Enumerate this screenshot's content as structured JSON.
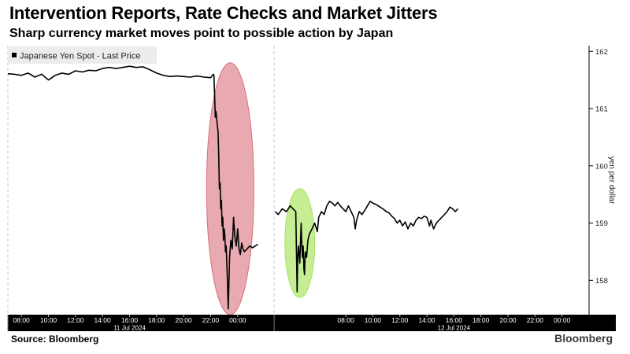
{
  "header": {
    "title": "Intervention Reports, Rate Checks and Market Jitters",
    "subtitle": "Sharp currency market moves point to possible action by Japan"
  },
  "footer": {
    "source": "Source: Bloomberg",
    "brand": "Bloomberg"
  },
  "chart_data": {
    "type": "line",
    "legend": {
      "label": "Japanese Yen Spot - Last Price",
      "placement": "top-left"
    },
    "ylabel": "yen per dollar",
    "y_axis_position": "right",
    "ylim": [
      157.4,
      162.1
    ],
    "yticks": [
      158,
      159,
      160,
      161,
      162
    ],
    "x_hours_range": [
      7,
      50
    ],
    "xticks": [
      {
        "hour": 8,
        "label": "08:00"
      },
      {
        "hour": 10,
        "label": "10:00"
      },
      {
        "hour": 12,
        "label": "12:00"
      },
      {
        "hour": 14,
        "label": "14:00"
      },
      {
        "hour": 16,
        "label": "16:00"
      },
      {
        "hour": 18,
        "label": "18:00"
      },
      {
        "hour": 20,
        "label": "20:00"
      },
      {
        "hour": 22,
        "label": "22:00"
      },
      {
        "hour": 24,
        "label": "00:00"
      },
      {
        "hour": 32,
        "label": "08:00"
      },
      {
        "hour": 34,
        "label": "10:00"
      },
      {
        "hour": 36,
        "label": "12:00"
      },
      {
        "hour": 38,
        "label": "14:00"
      },
      {
        "hour": 40,
        "label": "16:00"
      },
      {
        "hour": 42,
        "label": "18:00"
      },
      {
        "hour": 44,
        "label": "20:00"
      },
      {
        "hour": 46,
        "label": "22:00"
      },
      {
        "hour": 48,
        "label": "00:00"
      }
    ],
    "date_labels": [
      {
        "hour": 16,
        "label": "11 Jul 2024"
      },
      {
        "hour": 40,
        "label": "12 Jul 2024"
      }
    ],
    "day_separators": [
      7,
      26.7
    ],
    "gap": [
      25.5,
      26.7
    ],
    "highlights": [
      {
        "color": "#d9707c",
        "fill_opacity": 0.6,
        "x_range": [
          21.7,
          25.2
        ],
        "y_range": [
          157.4,
          161.8
        ]
      },
      {
        "color": "#a6e35a",
        "fill_opacity": 0.65,
        "x_range": [
          27.5,
          29.7
        ],
        "y_range": [
          157.7,
          159.6
        ]
      }
    ],
    "series": [
      {
        "name": "Japanese Yen Spot - Last Price",
        "color": "#000000",
        "points": [
          [
            7.0,
            161.61
          ],
          [
            7.5,
            161.6
          ],
          [
            8.0,
            161.58
          ],
          [
            8.5,
            161.62
          ],
          [
            9.0,
            161.55
          ],
          [
            9.5,
            161.6
          ],
          [
            10.0,
            161.5
          ],
          [
            10.5,
            161.58
          ],
          [
            11.0,
            161.62
          ],
          [
            11.5,
            161.6
          ],
          [
            12.0,
            161.66
          ],
          [
            12.5,
            161.64
          ],
          [
            13.0,
            161.67
          ],
          [
            13.5,
            161.66
          ],
          [
            14.0,
            161.7
          ],
          [
            14.5,
            161.72
          ],
          [
            15.0,
            161.7
          ],
          [
            15.5,
            161.72
          ],
          [
            16.0,
            161.74
          ],
          [
            16.5,
            161.72
          ],
          [
            17.0,
            161.73
          ],
          [
            17.5,
            161.68
          ],
          [
            18.0,
            161.62
          ],
          [
            18.5,
            161.58
          ],
          [
            19.0,
            161.56
          ],
          [
            19.5,
            161.57
          ],
          [
            20.0,
            161.56
          ],
          [
            20.5,
            161.55
          ],
          [
            21.0,
            161.57
          ],
          [
            21.5,
            161.55
          ],
          [
            22.0,
            161.54
          ],
          [
            22.2,
            161.6
          ],
          [
            22.25,
            161.58
          ],
          [
            22.3,
            161.2
          ],
          [
            22.35,
            160.85
          ],
          [
            22.4,
            160.95
          ],
          [
            22.5,
            160.7
          ],
          [
            22.55,
            160.6
          ],
          [
            22.6,
            160.2
          ],
          [
            22.65,
            159.6
          ],
          [
            22.7,
            159.7
          ],
          [
            22.75,
            159.25
          ],
          [
            22.8,
            159.4
          ],
          [
            22.85,
            158.95
          ],
          [
            22.9,
            159.1
          ],
          [
            22.95,
            158.7
          ],
          [
            23.0,
            158.9
          ],
          [
            23.05,
            158.8
          ],
          [
            23.1,
            158.5
          ],
          [
            23.15,
            158.6
          ],
          [
            23.2,
            158.3
          ],
          [
            23.25,
            157.95
          ],
          [
            23.3,
            157.5
          ],
          [
            23.35,
            157.9
          ],
          [
            23.4,
            158.4
          ],
          [
            23.5,
            158.7
          ],
          [
            23.6,
            158.55
          ],
          [
            23.7,
            159.1
          ],
          [
            23.8,
            158.75
          ],
          [
            23.9,
            158.6
          ],
          [
            24.0,
            158.9
          ],
          [
            24.1,
            158.55
          ],
          [
            24.2,
            158.45
          ],
          [
            24.3,
            158.65
          ],
          [
            24.4,
            158.55
          ],
          [
            24.5,
            158.5
          ],
          [
            24.7,
            158.55
          ],
          [
            24.9,
            158.6
          ],
          [
            25.1,
            158.57
          ],
          [
            25.3,
            158.6
          ],
          [
            25.5,
            158.63
          ],
          [
            26.8,
            159.2
          ],
          [
            27.0,
            159.15
          ],
          [
            27.3,
            159.25
          ],
          [
            27.6,
            159.2
          ],
          [
            27.9,
            159.3
          ],
          [
            28.1,
            159.25
          ],
          [
            28.3,
            159.2
          ],
          [
            28.4,
            157.8
          ],
          [
            28.45,
            158.4
          ],
          [
            28.5,
            158.6
          ],
          [
            28.6,
            158.3
          ],
          [
            28.7,
            159.0
          ],
          [
            28.75,
            158.6
          ],
          [
            28.8,
            158.4
          ],
          [
            28.85,
            158.6
          ],
          [
            28.9,
            158.2
          ],
          [
            28.95,
            158.1
          ],
          [
            29.0,
            158.5
          ],
          [
            29.1,
            158.4
          ],
          [
            29.2,
            158.7
          ],
          [
            29.3,
            158.8
          ],
          [
            29.5,
            158.9
          ],
          [
            29.7,
            159.0
          ],
          [
            29.9,
            158.85
          ],
          [
            30.0,
            159.1
          ],
          [
            30.2,
            159.2
          ],
          [
            30.4,
            159.15
          ],
          [
            30.6,
            159.3
          ],
          [
            30.8,
            159.38
          ],
          [
            31.0,
            159.35
          ],
          [
            31.2,
            159.3
          ],
          [
            31.4,
            159.36
          ],
          [
            31.6,
            159.3
          ],
          [
            31.8,
            159.25
          ],
          [
            32.0,
            159.2
          ],
          [
            32.2,
            159.3
          ],
          [
            32.4,
            159.2
          ],
          [
            32.6,
            159.1
          ],
          [
            32.7,
            158.9
          ],
          [
            32.8,
            159.05
          ],
          [
            33.0,
            159.2
          ],
          [
            33.2,
            159.15
          ],
          [
            33.4,
            159.22
          ],
          [
            33.6,
            159.3
          ],
          [
            33.8,
            159.38
          ],
          [
            34.0,
            159.35
          ],
          [
            34.2,
            159.33
          ],
          [
            34.4,
            159.3
          ],
          [
            34.6,
            159.27
          ],
          [
            34.8,
            159.24
          ],
          [
            35.0,
            159.2
          ],
          [
            35.2,
            159.18
          ],
          [
            35.4,
            159.12
          ],
          [
            35.6,
            159.08
          ],
          [
            35.8,
            159.0
          ],
          [
            36.0,
            159.05
          ],
          [
            36.2,
            158.95
          ],
          [
            36.4,
            159.02
          ],
          [
            36.6,
            158.9
          ],
          [
            36.8,
            159.0
          ],
          [
            37.0,
            158.95
          ],
          [
            37.2,
            159.05
          ],
          [
            37.4,
            159.1
          ],
          [
            37.6,
            159.08
          ],
          [
            37.8,
            159.12
          ],
          [
            38.0,
            159.1
          ],
          [
            38.2,
            158.95
          ],
          [
            38.3,
            159.05
          ],
          [
            38.5,
            158.9
          ],
          [
            38.7,
            159.0
          ],
          [
            38.9,
            159.05
          ],
          [
            39.1,
            159.1
          ],
          [
            39.3,
            159.15
          ],
          [
            39.5,
            159.2
          ],
          [
            39.7,
            159.28
          ],
          [
            39.9,
            159.25
          ],
          [
            40.1,
            159.2
          ],
          [
            40.3,
            159.25
          ]
        ]
      }
    ]
  }
}
